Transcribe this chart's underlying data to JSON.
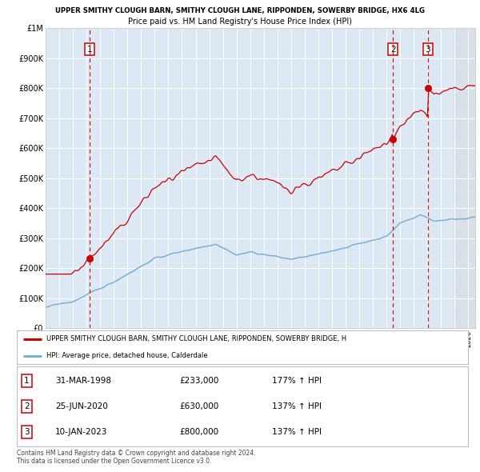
{
  "title1": "UPPER SMITHY CLOUGH BARN, SMITHY CLOUGH LANE, RIPPONDEN, SOWERBY BRIDGE, HX6 4LG",
  "title2": "Price paid vs. HM Land Registry's House Price Index (HPI)",
  "hpi_label": "HPI: Average price, detached house, Calderdale",
  "property_label": "UPPER SMITHY CLOUGH BARN, SMITHY CLOUGH LANE, RIPPONDEN, SOWERBY BRIDGE, H",
  "sale_color": "#cc0000",
  "hpi_color": "#7bafd4",
  "plot_bg": "#dce9f5",
  "sales": [
    {
      "date_num": 1998.25,
      "price": 233000,
      "label": "1"
    },
    {
      "date_num": 2020.48,
      "price": 630000,
      "label": "2"
    },
    {
      "date_num": 2023.03,
      "price": 800000,
      "label": "3"
    }
  ],
  "sale_annotations": [
    {
      "num": "1",
      "date": "31-MAR-1998",
      "price": "£233,000",
      "hpi": "177% ↑ HPI"
    },
    {
      "num": "2",
      "date": "25-JUN-2020",
      "price": "£630,000",
      "hpi": "137% ↑ HPI"
    },
    {
      "num": "3",
      "date": "10-JAN-2023",
      "price": "£800,000",
      "hpi": "137% ↑ HPI"
    }
  ],
  "footer": "Contains HM Land Registry data © Crown copyright and database right 2024.\nThis data is licensed under the Open Government Licence v3.0.",
  "ylim": [
    0,
    1000000
  ],
  "xlim_start": 1995.0,
  "xlim_end": 2026.5
}
